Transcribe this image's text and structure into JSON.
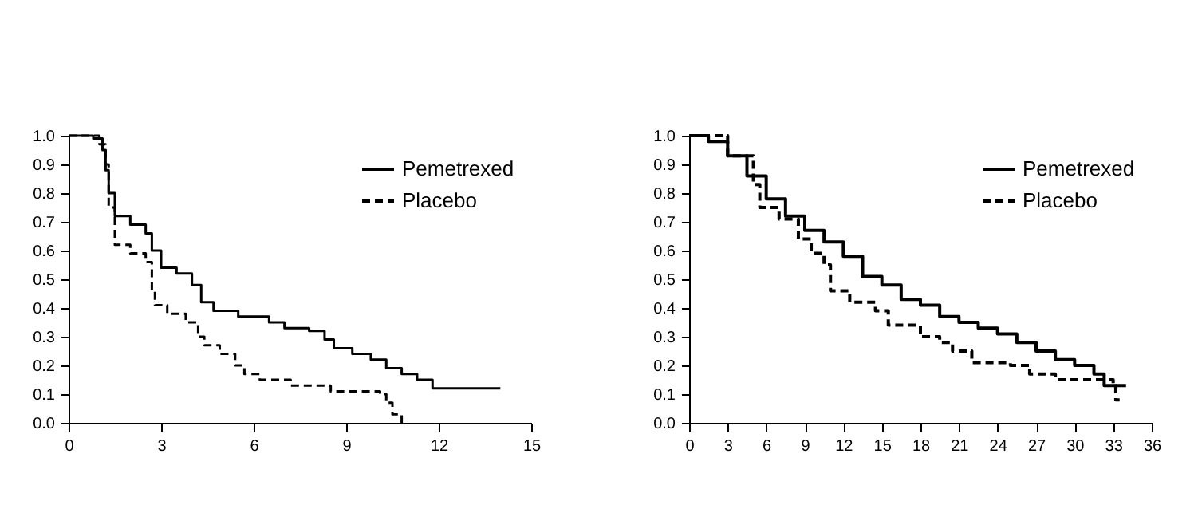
{
  "chart_data": [
    {
      "type": "step",
      "xlim": [
        0,
        15
      ],
      "xticks": [
        0,
        3,
        6,
        9,
        12,
        15
      ],
      "ylim": [
        0,
        1
      ],
      "yticks": [
        {
          "value": 0,
          "label": "0.0"
        },
        {
          "value": 0.1,
          "label": "0.1"
        },
        {
          "value": 0.2,
          "label": "0.2"
        },
        {
          "value": 0.3,
          "label": "0.3"
        },
        {
          "value": 0.4,
          "label": "0.4"
        },
        {
          "value": 0.5,
          "label": "0.5"
        },
        {
          "value": 0.6,
          "label": "0.6"
        },
        {
          "value": 0.7,
          "label": "0.7"
        },
        {
          "value": 0.8,
          "label": "0.8"
        },
        {
          "value": 0.9,
          "label": "0.9"
        },
        {
          "value": 1,
          "label": "1.0"
        }
      ],
      "grid": false,
      "legend": "top right",
      "series": [
        {
          "name": "Pemetrexed",
          "color": "#000000",
          "line_style": "solid",
          "x": [
            0,
            0.8,
            1.1,
            1.2,
            1.3,
            1.5,
            2.0,
            2.5,
            2.7,
            3.0,
            3.5,
            4.0,
            4.3,
            4.7,
            5.5,
            6.5,
            7.0,
            7.8,
            8.3,
            8.6,
            9.2,
            9.8,
            10.3,
            10.8,
            11.3,
            11.8,
            14
          ],
          "values": [
            1.0,
            0.99,
            0.95,
            0.88,
            0.8,
            0.72,
            0.69,
            0.66,
            0.6,
            0.54,
            0.52,
            0.48,
            0.42,
            0.39,
            0.37,
            0.35,
            0.33,
            0.32,
            0.29,
            0.26,
            0.24,
            0.22,
            0.19,
            0.17,
            0.15,
            0.12,
            0.12
          ]
        },
        {
          "name": "Placebo",
          "color": "#000000",
          "line_style": "dashed",
          "x": [
            0,
            1.0,
            1.2,
            1.3,
            1.5,
            2.0,
            2.5,
            2.7,
            2.8,
            3.2,
            3.8,
            4.2,
            4.4,
            4.9,
            5.4,
            5.7,
            6.2,
            7.2,
            8.5,
            10.1,
            10.3,
            10.5,
            10.8
          ],
          "values": [
            1.0,
            0.97,
            0.9,
            0.75,
            0.62,
            0.59,
            0.56,
            0.46,
            0.41,
            0.38,
            0.35,
            0.3,
            0.27,
            0.24,
            0.2,
            0.17,
            0.15,
            0.13,
            0.11,
            0.1,
            0.07,
            0.03,
            0.0
          ]
        }
      ]
    },
    {
      "type": "step",
      "xlim": [
        0,
        36
      ],
      "xticks": [
        0,
        3,
        6,
        9,
        12,
        15,
        18,
        21,
        24,
        27,
        30,
        33,
        36
      ],
      "ylim": [
        0,
        1
      ],
      "yticks": [
        {
          "value": 0,
          "label": "0.0"
        },
        {
          "value": 0.1,
          "label": "0.1"
        },
        {
          "value": 0.2,
          "label": "0.2"
        },
        {
          "value": 0.3,
          "label": "0.3"
        },
        {
          "value": 0.4,
          "label": "0.4"
        },
        {
          "value": 0.5,
          "label": "0.5"
        },
        {
          "value": 0.6,
          "label": "0.6"
        },
        {
          "value": 0.7,
          "label": "0.7"
        },
        {
          "value": 0.8,
          "label": "0.8"
        },
        {
          "value": 0.9,
          "label": "0.9"
        },
        {
          "value": 1,
          "label": "1.0"
        }
      ],
      "grid": false,
      "legend": "top right",
      "series": [
        {
          "name": "Pemetrexed",
          "color": "#000000",
          "line_style": "solid",
          "x": [
            0,
            1.5,
            3,
            4.5,
            6,
            7.5,
            9,
            10.5,
            12,
            13.5,
            15,
            16.5,
            18,
            19.5,
            21,
            22.5,
            24,
            25.5,
            27,
            28.5,
            30,
            31.5,
            32.3,
            34
          ],
          "values": [
            1.0,
            0.98,
            0.93,
            0.86,
            0.78,
            0.72,
            0.67,
            0.63,
            0.58,
            0.51,
            0.48,
            0.43,
            0.41,
            0.37,
            0.35,
            0.33,
            0.31,
            0.28,
            0.25,
            0.22,
            0.2,
            0.17,
            0.13,
            0.13
          ]
        },
        {
          "name": "Placebo",
          "color": "#000000",
          "line_style": "dashed",
          "x": [
            0,
            3,
            5,
            5.5,
            7,
            8.5,
            9.5,
            10.5,
            11,
            12.5,
            14.5,
            15.5,
            18,
            19.5,
            20.5,
            22,
            25,
            26.5,
            28.5,
            32,
            33,
            33.2,
            33.5
          ],
          "values": [
            1.0,
            0.93,
            0.83,
            0.75,
            0.71,
            0.64,
            0.59,
            0.55,
            0.46,
            0.42,
            0.39,
            0.34,
            0.3,
            0.28,
            0.25,
            0.21,
            0.2,
            0.17,
            0.15,
            0.15,
            0.13,
            0.08,
            0.08
          ]
        }
      ]
    }
  ]
}
